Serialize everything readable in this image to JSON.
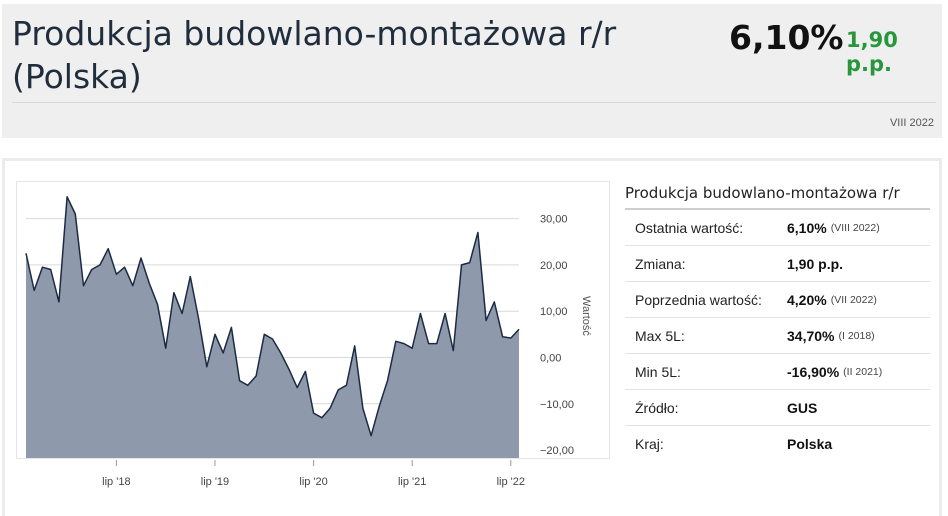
{
  "header": {
    "title": "Produkcja budowlano-montażowa r/r (Polska)",
    "value": "6,10%",
    "change": "1,90 p.p.",
    "period": "VIII 2022",
    "change_color": "#27963c"
  },
  "info": {
    "title": "Produkcja budowlano-montażowa r/r",
    "rows": [
      {
        "label": "Ostatnia wartość:",
        "value": "6,10%",
        "date": "(VIII 2022)"
      },
      {
        "label": "Zmiana:",
        "value": "1,90 p.p.",
        "date": ""
      },
      {
        "label": "Poprzednia wartość:",
        "value": "4,20%",
        "date": "(VII 2022)"
      },
      {
        "label": "Max 5L:",
        "value": "34,70%",
        "date": "(I 2018)"
      },
      {
        "label": "Min 5L:",
        "value": "-16,90%",
        "date": "(II 2021)"
      },
      {
        "label": "Źródło:",
        "value": "GUS",
        "date": ""
      },
      {
        "label": "Kraj:",
        "value": "Polska",
        "date": ""
      }
    ]
  },
  "chart_data": {
    "type": "area",
    "ylabel": "Wartość",
    "ylim": [
      -20,
      35
    ],
    "yticks": [
      30,
      20,
      10,
      0,
      -10,
      -20
    ],
    "ytick_labels": [
      "30,00",
      "20,00",
      "10,00",
      "0,00",
      "−10,00",
      "−20,00"
    ],
    "xtick_labels": [
      "lip '18",
      "lip '19",
      "lip '20",
      "lip '21",
      "lip '22"
    ],
    "xtick_dates": [
      "2018-07",
      "2019-07",
      "2020-07",
      "2021-07",
      "2022-07"
    ],
    "fill_color": "#8e9aab",
    "line_color": "#1c2a44",
    "grid": true,
    "x": [
      "2017-08",
      "2017-09",
      "2017-10",
      "2017-11",
      "2017-12",
      "2018-01",
      "2018-02",
      "2018-03",
      "2018-04",
      "2018-05",
      "2018-06",
      "2018-07",
      "2018-08",
      "2018-09",
      "2018-10",
      "2018-11",
      "2018-12",
      "2019-01",
      "2019-02",
      "2019-03",
      "2019-04",
      "2019-05",
      "2019-06",
      "2019-07",
      "2019-08",
      "2019-09",
      "2019-10",
      "2019-11",
      "2019-12",
      "2020-01",
      "2020-02",
      "2020-03",
      "2020-04",
      "2020-05",
      "2020-06",
      "2020-07",
      "2020-08",
      "2020-09",
      "2020-10",
      "2020-11",
      "2020-12",
      "2021-01",
      "2021-02",
      "2021-03",
      "2021-04",
      "2021-05",
      "2021-06",
      "2021-07",
      "2021-08",
      "2021-09",
      "2021-10",
      "2021-11",
      "2021-12",
      "2022-01",
      "2022-02",
      "2022-03",
      "2022-04",
      "2022-05",
      "2022-06",
      "2022-07",
      "2022-08"
    ],
    "values": [
      22.5,
      14.5,
      19.5,
      19.0,
      12.0,
      34.7,
      31.0,
      15.5,
      19.0,
      20.0,
      23.5,
      18.0,
      19.5,
      15.5,
      21.5,
      16.0,
      11.5,
      2.0,
      14.0,
      9.5,
      17.5,
      8.5,
      -2.0,
      5.0,
      1.0,
      6.5,
      -5.0,
      -6.0,
      -4.0,
      5.0,
      4.0,
      1.0,
      -2.5,
      -6.5,
      -3.0,
      -12.0,
      -13.0,
      -11.0,
      -7.0,
      -6.0,
      2.5,
      -11.0,
      -16.9,
      -10.5,
      -5.0,
      3.5,
      3.0,
      2.0,
      9.5,
      3.0,
      3.0,
      9.5,
      1.5,
      20.0,
      20.5,
      27.0,
      8.0,
      12.0,
      4.5,
      4.2,
      6.1
    ]
  }
}
